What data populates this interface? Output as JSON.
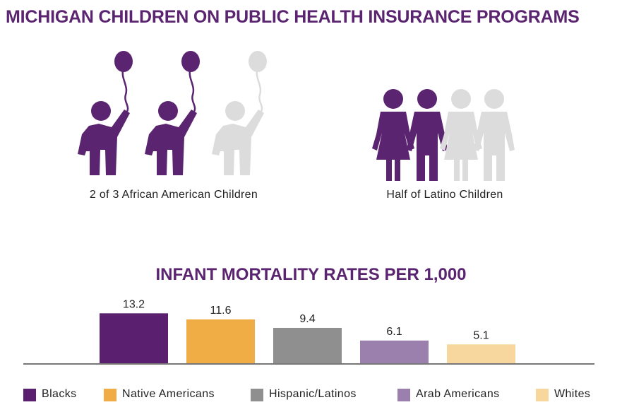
{
  "title": "MICHIGAN CHILDREN ON PUBLIC HEALTH INSURANCE PROGRAMS",
  "infographic": {
    "african_american": {
      "caption": "2 of 3 African American Children",
      "filled": 2,
      "total": 3
    },
    "latino": {
      "caption": "Half of Latino Children",
      "filled": 2,
      "total": 4
    }
  },
  "colors": {
    "accent": "#5b2470",
    "inactive": "#dcdcdc",
    "axis": "#777777"
  },
  "chart_data": {
    "type": "bar",
    "title": "INFANT MORTALITY RATES PER 1,000",
    "categories": [
      "Blacks",
      "Native Americans",
      "Hispanic/Latinos",
      "Arab Americans",
      "Whites"
    ],
    "values": [
      13.2,
      11.6,
      9.4,
      6.1,
      5.1
    ],
    "value_labels": [
      "13.2",
      "11.6",
      "9.4",
      "6.1",
      "5.1"
    ],
    "colors": [
      "#5b1f6f",
      "#f0ad45",
      "#8f8f8f",
      "#9b7fad",
      "#f7d79d"
    ],
    "ylim": [
      0,
      14
    ],
    "legend": "bottom",
    "grid": false
  }
}
